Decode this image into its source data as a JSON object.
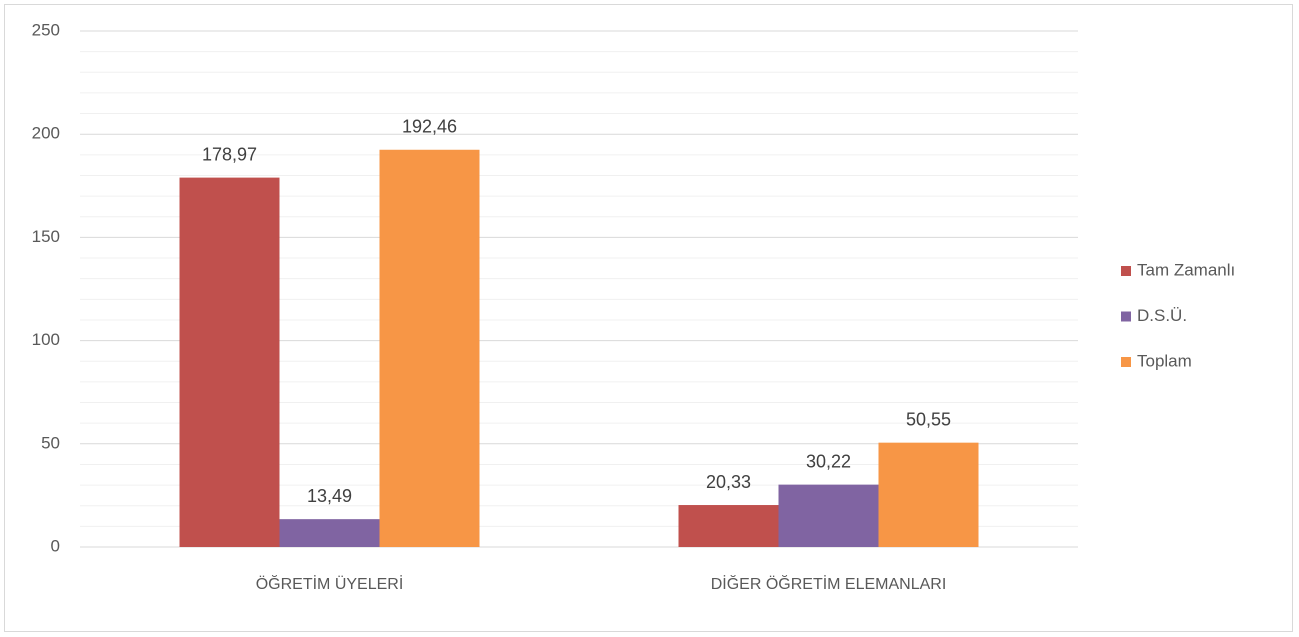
{
  "chart_data": {
    "type": "bar",
    "categories": [
      "ÖĞRETİM ÜYELERİ",
      "DİĞER ÖĞRETİM ELEMANLARI"
    ],
    "series": [
      {
        "name": "Tam Zamanlı",
        "color": "#c0504d",
        "values": [
          178.97,
          20.33
        ],
        "value_labels": [
          "178,97",
          "20,33"
        ]
      },
      {
        "name": "D.S.Ü.",
        "color": "#8064a2",
        "values": [
          13.49,
          30.22
        ],
        "value_labels": [
          "13,49",
          "30,22"
        ]
      },
      {
        "name": "Toplam",
        "color": "#f79646",
        "values": [
          192.46,
          50.55
        ],
        "value_labels": [
          "192,46",
          "50,55"
        ]
      }
    ],
    "ylim": [
      0,
      250
    ],
    "yticks": [
      0,
      50,
      100,
      150,
      200,
      250
    ],
    "yminorticks": [
      10,
      20,
      30,
      40,
      60,
      70,
      80,
      90,
      110,
      120,
      130,
      140,
      160,
      170,
      180,
      190,
      210,
      220,
      230,
      240
    ],
    "grid": true,
    "legend": "right"
  }
}
